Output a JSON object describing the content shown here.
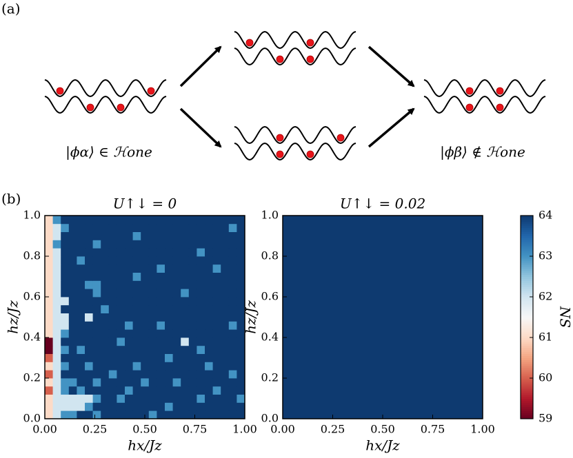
{
  "panel_labels": [
    "(a)",
    "(b)"
  ],
  "diagram": {
    "left_label": "|ϕα⟩ ∈ ℋone",
    "right_label": "|ϕβ⟩ ∉ ℋone"
  },
  "chart_data": [
    {
      "type": "heatmap",
      "title": "U↑↓ = 0",
      "xlabel": "hx/Jz",
      "ylabel": "hz/Jz",
      "xlim": [
        0,
        1
      ],
      "ylim": [
        0,
        1
      ],
      "xticks": [
        {
          "value": 0,
          "label": "0.00"
        },
        {
          "value": 0.25,
          "label": "0.25"
        },
        {
          "value": 0.5,
          "label": "0.50"
        },
        {
          "value": 0.75,
          "label": "0.75"
        },
        {
          "value": 1,
          "label": "1.00"
        }
      ],
      "yticks": [
        {
          "value": 0,
          "label": "0.0"
        },
        0.2,
        0.4,
        0.6,
        0.8,
        {
          "value": 1,
          "label": "1.0"
        }
      ],
      "clim": [
        59,
        64
      ],
      "colormap": [
        "#67001f",
        "#b2182b",
        "#d6604d",
        "#f4a582",
        "#fddbc7",
        "#f7f7f7",
        "#d1e5f0",
        "#92c5de",
        "#4393c3",
        "#2166ac",
        "#0e3a70"
      ],
      "z": [
        [
          61,
          62,
          63,
          63,
          64,
          64,
          63,
          64,
          64,
          64,
          64,
          64,
          64,
          63,
          64,
          64,
          64,
          64,
          64,
          64,
          64,
          64,
          64,
          64,
          64
        ],
        [
          61,
          62,
          62,
          62,
          62,
          63,
          64,
          64,
          64,
          64,
          64,
          64,
          64,
          64,
          64,
          63,
          64,
          64,
          64,
          64,
          64,
          64,
          64,
          64,
          64
        ],
        [
          61,
          62,
          62,
          62,
          62,
          62,
          63,
          64,
          64,
          63,
          64,
          64,
          64,
          64,
          64,
          64,
          64,
          64,
          64,
          63,
          64,
          64,
          64,
          64,
          63
        ],
        [
          60,
          62,
          63,
          64,
          63,
          64,
          64,
          64,
          64,
          64,
          63,
          64,
          64,
          64,
          64,
          64,
          64,
          64,
          64,
          64,
          64,
          63,
          64,
          64,
          64
        ],
        [
          61,
          62,
          63,
          63,
          64,
          64,
          63,
          64,
          64,
          64,
          64,
          64,
          63,
          64,
          64,
          64,
          63,
          64,
          64,
          64,
          64,
          64,
          64,
          64,
          64
        ],
        [
          60,
          62,
          64,
          64,
          64,
          64,
          64,
          64,
          63,
          64,
          64,
          64,
          64,
          64,
          64,
          64,
          64,
          64,
          64,
          64,
          64,
          64,
          64,
          63,
          64
        ],
        [
          61,
          62,
          63,
          64,
          64,
          63,
          64,
          64,
          64,
          64,
          64,
          63,
          64,
          64,
          64,
          64,
          64,
          64,
          64,
          64,
          63,
          64,
          64,
          64,
          64
        ],
        [
          60,
          62,
          64,
          64,
          64,
          64,
          64,
          64,
          64,
          64,
          64,
          64,
          64,
          64,
          64,
          63,
          64,
          64,
          64,
          64,
          64,
          64,
          64,
          64,
          64
        ],
        [
          59,
          62,
          63,
          64,
          63,
          64,
          64,
          64,
          64,
          64,
          64,
          64,
          64,
          64,
          64,
          64,
          64,
          64,
          64,
          63,
          64,
          64,
          64,
          64,
          64
        ],
        [
          59,
          62,
          64,
          64,
          64,
          64,
          64,
          64,
          64,
          63,
          64,
          64,
          64,
          64,
          64,
          64,
          64,
          62,
          64,
          64,
          64,
          64,
          64,
          64,
          64
        ],
        [
          61,
          62,
          63,
          64,
          64,
          64,
          64,
          64,
          64,
          64,
          64,
          64,
          64,
          64,
          64,
          64,
          64,
          64,
          64,
          64,
          64,
          64,
          64,
          64,
          64
        ],
        [
          61,
          62,
          62,
          64,
          64,
          64,
          64,
          64,
          64,
          64,
          63,
          64,
          64,
          64,
          63,
          64,
          64,
          64,
          64,
          64,
          64,
          64,
          64,
          63,
          64
        ],
        [
          61,
          62,
          62,
          64,
          64,
          62,
          64,
          64,
          64,
          64,
          64,
          64,
          64,
          64,
          64,
          64,
          64,
          64,
          64,
          64,
          64,
          64,
          64,
          64,
          64
        ],
        [
          61,
          62,
          64,
          64,
          64,
          64,
          64,
          63,
          64,
          64,
          64,
          64,
          64,
          64,
          64,
          64,
          64,
          64,
          64,
          64,
          64,
          64,
          64,
          64,
          64
        ],
        [
          61,
          62,
          62,
          64,
          64,
          64,
          64,
          64,
          64,
          64,
          64,
          64,
          64,
          64,
          64,
          64,
          64,
          64,
          64,
          64,
          64,
          64,
          64,
          64,
          64
        ],
        [
          61,
          62,
          64,
          64,
          64,
          64,
          63,
          64,
          64,
          64,
          64,
          64,
          64,
          64,
          64,
          64,
          64,
          63,
          64,
          64,
          64,
          64,
          64,
          64,
          64
        ],
        [
          61,
          62,
          64,
          64,
          64,
          63,
          63,
          64,
          64,
          64,
          64,
          64,
          64,
          64,
          64,
          64,
          64,
          64,
          64,
          64,
          64,
          64,
          64,
          64,
          64
        ],
        [
          61,
          62,
          64,
          64,
          64,
          64,
          64,
          64,
          64,
          64,
          64,
          63,
          64,
          64,
          64,
          64,
          64,
          64,
          64,
          64,
          64,
          64,
          64,
          64,
          64
        ],
        [
          61,
          62,
          64,
          64,
          64,
          64,
          64,
          64,
          64,
          64,
          64,
          64,
          64,
          64,
          63,
          64,
          64,
          64,
          64,
          64,
          64,
          63,
          64,
          64,
          64
        ],
        [
          61,
          62,
          64,
          64,
          63,
          64,
          64,
          64,
          64,
          64,
          64,
          64,
          64,
          64,
          64,
          64,
          64,
          64,
          64,
          64,
          64,
          64,
          64,
          64,
          64
        ],
        [
          61,
          62,
          64,
          64,
          64,
          64,
          64,
          64,
          64,
          64,
          64,
          64,
          64,
          64,
          64,
          64,
          64,
          64,
          64,
          63,
          64,
          64,
          64,
          64,
          64
        ],
        [
          61,
          63,
          64,
          64,
          64,
          64,
          63,
          64,
          64,
          64,
          64,
          64,
          64,
          64,
          64,
          64,
          64,
          64,
          64,
          64,
          64,
          64,
          64,
          64,
          64
        ],
        [
          61,
          62,
          64,
          64,
          64,
          64,
          64,
          64,
          64,
          64,
          64,
          63,
          64,
          64,
          64,
          64,
          64,
          64,
          64,
          64,
          64,
          64,
          64,
          64,
          64
        ],
        [
          61,
          62,
          63,
          64,
          64,
          64,
          64,
          64,
          64,
          64,
          64,
          64,
          64,
          64,
          64,
          64,
          64,
          64,
          64,
          64,
          64,
          64,
          64,
          63,
          64
        ],
        [
          61,
          63,
          64,
          64,
          64,
          64,
          64,
          64,
          64,
          64,
          64,
          64,
          64,
          64,
          64,
          64,
          64,
          64,
          64,
          64,
          64,
          64,
          64,
          64,
          64
        ]
      ]
    },
    {
      "type": "heatmap",
      "title": "U↑↓ = 0.02",
      "xlabel": "hx/Jz",
      "ylabel": "hz/Jz",
      "xlim": [
        0,
        1
      ],
      "ylim": [
        0,
        1
      ],
      "xticks": [
        {
          "value": 0,
          "label": "0.00"
        },
        {
          "value": 0.25,
          "label": "0.25"
        },
        {
          "value": 0.5,
          "label": "0.50"
        },
        {
          "value": 0.75,
          "label": "0.75"
        },
        {
          "value": 1,
          "label": "1.00"
        }
      ],
      "yticks": [
        {
          "value": 0,
          "label": "0.0"
        },
        0.2,
        0.4,
        0.6,
        0.8,
        {
          "value": 1,
          "label": "1.0"
        }
      ],
      "clim": [
        59,
        64
      ],
      "colormap": [
        "#67001f",
        "#b2182b",
        "#d6604d",
        "#f4a582",
        "#fddbc7",
        "#f7f7f7",
        "#d1e5f0",
        "#92c5de",
        "#4393c3",
        "#2166ac",
        "#0e3a70"
      ],
      "z": [
        [
          64
        ]
      ],
      "colorbar": {
        "label": "NS",
        "ticks": [
          59,
          60,
          61,
          62,
          63,
          64
        ]
      }
    }
  ]
}
